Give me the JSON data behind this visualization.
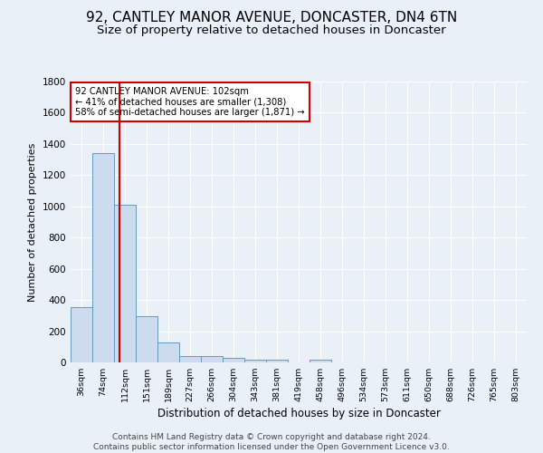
{
  "title": "92, CANTLEY MANOR AVENUE, DONCASTER, DN4 6TN",
  "subtitle": "Size of property relative to detached houses in Doncaster",
  "xlabel": "Distribution of detached houses by size in Doncaster",
  "ylabel": "Number of detached properties",
  "footer_line1": "Contains HM Land Registry data © Crown copyright and database right 2024.",
  "footer_line2": "Contains public sector information licensed under the Open Government Licence v3.0.",
  "bin_labels": [
    "36sqm",
    "74sqm",
    "112sqm",
    "151sqm",
    "189sqm",
    "227sqm",
    "266sqm",
    "304sqm",
    "343sqm",
    "381sqm",
    "419sqm",
    "458sqm",
    "496sqm",
    "534sqm",
    "573sqm",
    "611sqm",
    "650sqm",
    "688sqm",
    "726sqm",
    "765sqm",
    "803sqm"
  ],
  "bar_heights": [
    355,
    1340,
    1010,
    295,
    130,
    40,
    40,
    30,
    20,
    20,
    0,
    20,
    0,
    0,
    0,
    0,
    0,
    0,
    0,
    0,
    0
  ],
  "bar_color": "#ccdcee",
  "bar_edge_color": "#6699bb",
  "vline_x": 1.75,
  "vline_color": "#cc0000",
  "annotation_title": "92 CANTLEY MANOR AVENUE: 102sqm",
  "annotation_line2": "← 41% of detached houses are smaller (1,308)",
  "annotation_line3": "58% of semi-detached houses are larger (1,871) →",
  "annotation_box_color": "#cc0000",
  "ylim": [
    0,
    1800
  ],
  "yticks": [
    0,
    200,
    400,
    600,
    800,
    1000,
    1200,
    1400,
    1600,
    1800
  ],
  "background_color": "#eaf0f8",
  "grid_color": "#ffffff",
  "title_fontsize": 11,
  "subtitle_fontsize": 9.5,
  "xlabel_fontsize": 8.5,
  "ylabel_fontsize": 8,
  "footer_fontsize": 6.5
}
